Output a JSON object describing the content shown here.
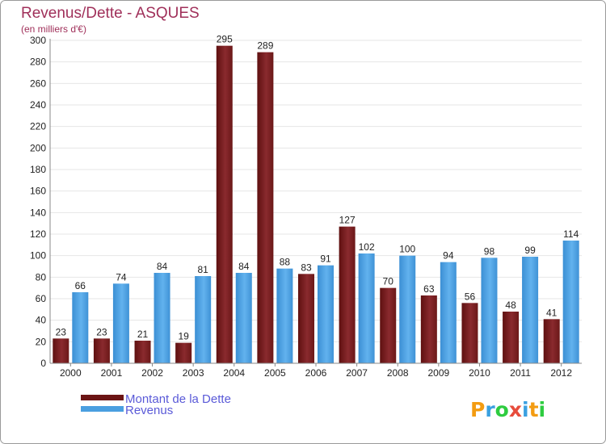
{
  "chart_data": {
    "type": "bar",
    "title": "Revenus/Dette - ASQUES",
    "subtitle": "(en milliers d'€)",
    "categories": [
      "2000",
      "2001",
      "2002",
      "2003",
      "2004",
      "2005",
      "2006",
      "2007",
      "2008",
      "2009",
      "2010",
      "2011",
      "2012"
    ],
    "series": [
      {
        "name": "Montant de la Dette",
        "color": "#7b1e1e",
        "values": [
          23,
          23,
          21,
          19,
          295,
          289,
          83,
          127,
          70,
          63,
          56,
          48,
          41
        ]
      },
      {
        "name": "Revenus",
        "color": "#4a9fe0",
        "values": [
          66,
          74,
          84,
          81,
          84,
          88,
          91,
          102,
          100,
          94,
          98,
          99,
          114
        ]
      }
    ],
    "ylim": [
      0,
      300
    ],
    "yticks": [
      0,
      20,
      40,
      60,
      80,
      100,
      120,
      140,
      160,
      180,
      200,
      220,
      240,
      260,
      280,
      300
    ],
    "grid": true,
    "legend_position": "bottom-left"
  },
  "branding": {
    "logo_text": "Proxiti",
    "letter_colors": [
      "#f39c12",
      "#3aa0e0",
      "#2ecc40",
      "#e74c3c",
      "#3aa0e0",
      "#f39c12",
      "#2ecc40"
    ]
  }
}
